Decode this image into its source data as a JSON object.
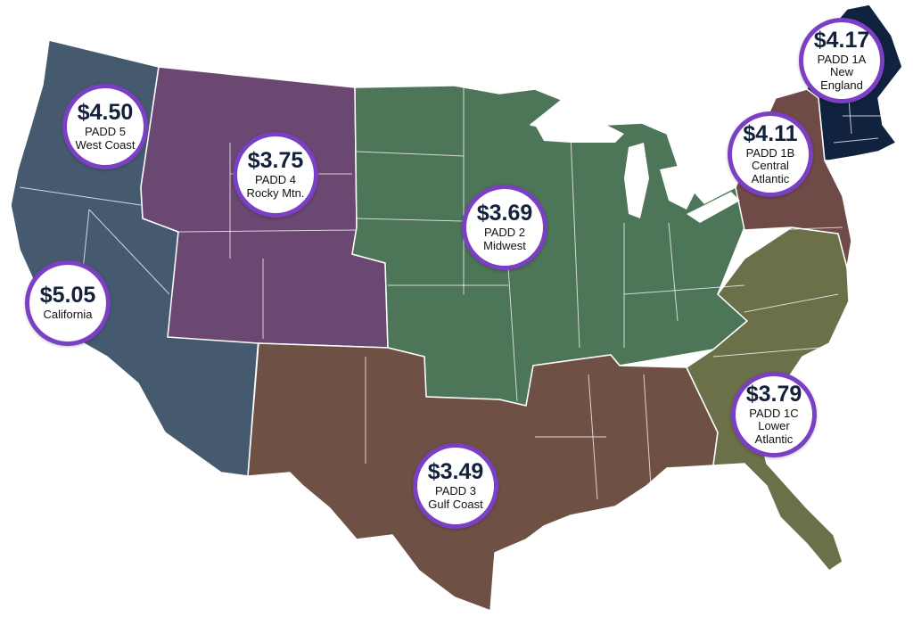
{
  "colors": {
    "west_coast": "#465a6f",
    "rocky_mtn": "#6a4872",
    "midwest": "#4d7557",
    "gulf_coast": "#6f5045",
    "lower_atlantic": "#6c7048",
    "central_atlantic": "#704a47",
    "new_england": "#11223f",
    "bubble_border": "#7b3fc4",
    "price_text": "#14213d"
  },
  "regions": [
    {
      "id": "padd5",
      "price": "$4.50",
      "line1": "PADD 5",
      "line2": "West Coast",
      "line3": ""
    },
    {
      "id": "california",
      "price": "$5.05",
      "line1": "California",
      "line2": "",
      "line3": ""
    },
    {
      "id": "padd4",
      "price": "$3.75",
      "line1": "PADD 4",
      "line2": "Rocky Mtn.",
      "line3": ""
    },
    {
      "id": "padd2",
      "price": "$3.69",
      "line1": "PADD 2",
      "line2": "Midwest",
      "line3": ""
    },
    {
      "id": "padd3",
      "price": "$3.49",
      "line1": "PADD 3",
      "line2": "Gulf Coast",
      "line3": ""
    },
    {
      "id": "padd1c",
      "price": "$3.79",
      "line1": "PADD 1C",
      "line2": "Lower",
      "line3": "Atlantic"
    },
    {
      "id": "padd1b",
      "price": "$4.11",
      "line1": "PADD 1B",
      "line2": "Central",
      "line3": "Atlantic"
    },
    {
      "id": "padd1a",
      "price": "$4.17",
      "line1": "PADD 1A",
      "line2": "New",
      "line3": "England"
    }
  ]
}
